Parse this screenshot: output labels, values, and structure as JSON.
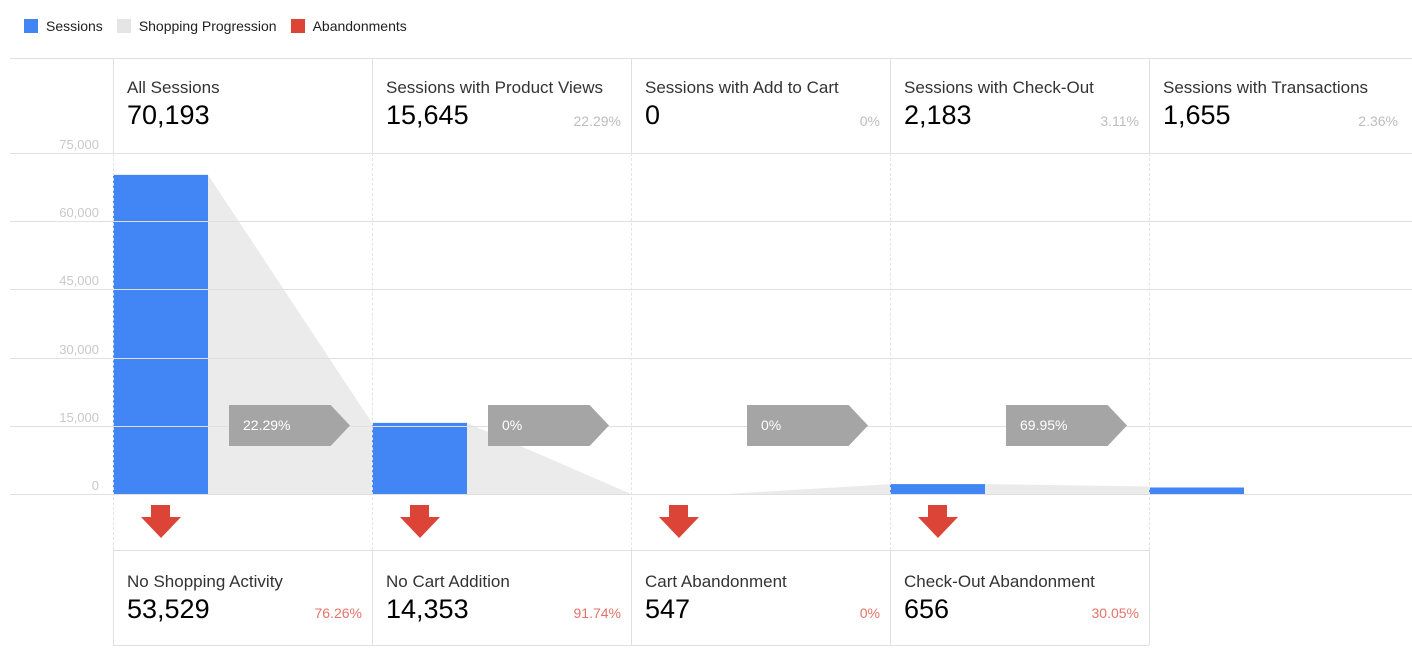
{
  "legend": [
    {
      "label": "Sessions",
      "color": "#4285f4"
    },
    {
      "label": "Shopping Progression",
      "color": "#e5e5e5"
    },
    {
      "label": "Abandonments",
      "color": "#db4437"
    }
  ],
  "chart_data": {
    "type": "bar",
    "ylim": [
      0,
      75000
    ],
    "yticks": [
      "75,000",
      "60,000",
      "45,000",
      "30,000",
      "15,000",
      "0"
    ],
    "categories": [
      "All Sessions",
      "Sessions with Product Views",
      "Sessions with Add to Cart",
      "Sessions with Check-Out",
      "Sessions with Transactions"
    ],
    "values": [
      70193,
      15645,
      0,
      2183,
      1655
    ],
    "value_labels": [
      "70,193",
      "15,645",
      "0",
      "2,183",
      "1,655"
    ],
    "percent_of_total": [
      "",
      "22.29%",
      "0%",
      "3.11%",
      "2.36%"
    ],
    "progression_rates": [
      "22.29%",
      "0%",
      "0%",
      "69.95%"
    ],
    "abandonments": [
      {
        "label": "No Shopping Activity",
        "value": "53,529",
        "rate": "76.26%"
      },
      {
        "label": "No Cart Addition",
        "value": "14,353",
        "rate": "91.74%"
      },
      {
        "label": "Cart Abandonment",
        "value": "547",
        "rate": "0%"
      },
      {
        "label": "Check-Out Abandonment",
        "value": "656",
        "rate": "30.05%"
      }
    ]
  }
}
